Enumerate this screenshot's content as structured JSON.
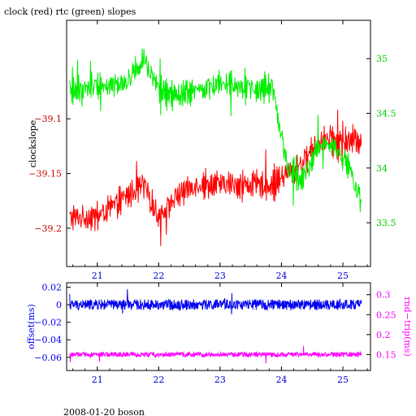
{
  "title": "clock (red) rtc (green) slopes",
  "footer": "2008-01-20 boson",
  "colors": {
    "clock": "#ff0000",
    "rtc": "#00ee00",
    "offset": "#0000ee",
    "rndtrip": "#ff00ff",
    "frame": "#000000",
    "xtick": "#0000cc"
  },
  "chart_data": [
    {
      "type": "line",
      "title": "clock (red) rtc (green) slopes",
      "xlabel": "",
      "x_range": [
        20.5,
        25.45
      ],
      "x_ticks": [
        21,
        22,
        23,
        24,
        25
      ],
      "x_tick_labels": [
        "21",
        "22",
        "23",
        "24",
        "25"
      ],
      "y_left": {
        "label": "clockslope",
        "range": [
          -39.235,
          -39.01
        ],
        "ticks": [
          -39.1,
          -39.15,
          -39.2
        ],
        "tick_labels": [
          "−39.1",
          "−39.15",
          "−39.2"
        ]
      },
      "y_right": {
        "label": "",
        "range": [
          33.1,
          35.35
        ],
        "ticks": [
          35,
          34.5,
          34,
          33.5
        ],
        "tick_labels": [
          "35",
          "34.5",
          "34",
          "33.5"
        ]
      },
      "series": [
        {
          "axis": "left",
          "color": "red",
          "x": [
            20.55,
            21.0,
            21.5,
            21.75,
            22.0,
            22.3,
            22.6,
            22.85,
            23.1,
            23.35,
            23.6,
            23.85,
            24.1,
            24.35,
            24.6,
            24.85,
            25.1,
            25.3
          ],
          "y": [
            -39.19,
            -39.19,
            -39.17,
            -39.16,
            -39.19,
            -39.17,
            -39.16,
            -39.16,
            -39.16,
            -39.16,
            -39.16,
            -39.16,
            -39.15,
            -39.14,
            -39.12,
            -39.12,
            -39.12,
            -39.12
          ],
          "spread": 0.02
        },
        {
          "axis": "right",
          "color": "green",
          "x": [
            20.55,
            20.9,
            21.2,
            21.5,
            21.75,
            22.0,
            22.3,
            22.6,
            22.85,
            23.1,
            23.35,
            23.6,
            23.85,
            24.1,
            24.35,
            24.6,
            24.85,
            25.1,
            25.3
          ],
          "y": [
            34.7,
            34.75,
            34.75,
            34.8,
            35.0,
            34.7,
            34.65,
            34.7,
            34.75,
            34.8,
            34.75,
            34.7,
            34.75,
            34.0,
            33.9,
            34.2,
            34.2,
            34.0,
            33.7
          ],
          "spread": 0.18
        }
      ]
    },
    {
      "type": "line",
      "xlabel": "",
      "x_range": [
        20.5,
        25.45
      ],
      "x_ticks": [
        21,
        22,
        23,
        24,
        25
      ],
      "x_tick_labels": [
        "21",
        "22",
        "23",
        "24",
        "25"
      ],
      "y_left": {
        "label": "offset(ms)",
        "range": [
          -0.075,
          0.025
        ],
        "ticks": [
          0.02,
          0,
          -0.02,
          -0.04,
          -0.06
        ],
        "tick_labels": [
          "0.02",
          "0",
          "−0.02",
          "−0.04",
          "−0.06"
        ]
      },
      "y_right": {
        "label": "rnd−trip(ms)",
        "range": [
          0.11,
          0.33
        ],
        "ticks": [
          0.3,
          0.25,
          0.2,
          0.15
        ],
        "tick_labels": [
          "0.3",
          "0.25",
          "0.2",
          "0.15"
        ]
      },
      "series": [
        {
          "axis": "left",
          "color": "blue",
          "x": [
            20.55,
            25.3
          ],
          "y": [
            0.0,
            0.0
          ],
          "spread": 0.006
        },
        {
          "axis": "right",
          "color": "magenta",
          "x": [
            20.55,
            25.3
          ],
          "y": [
            0.15,
            0.15
          ],
          "spread": 0.006
        }
      ]
    }
  ]
}
